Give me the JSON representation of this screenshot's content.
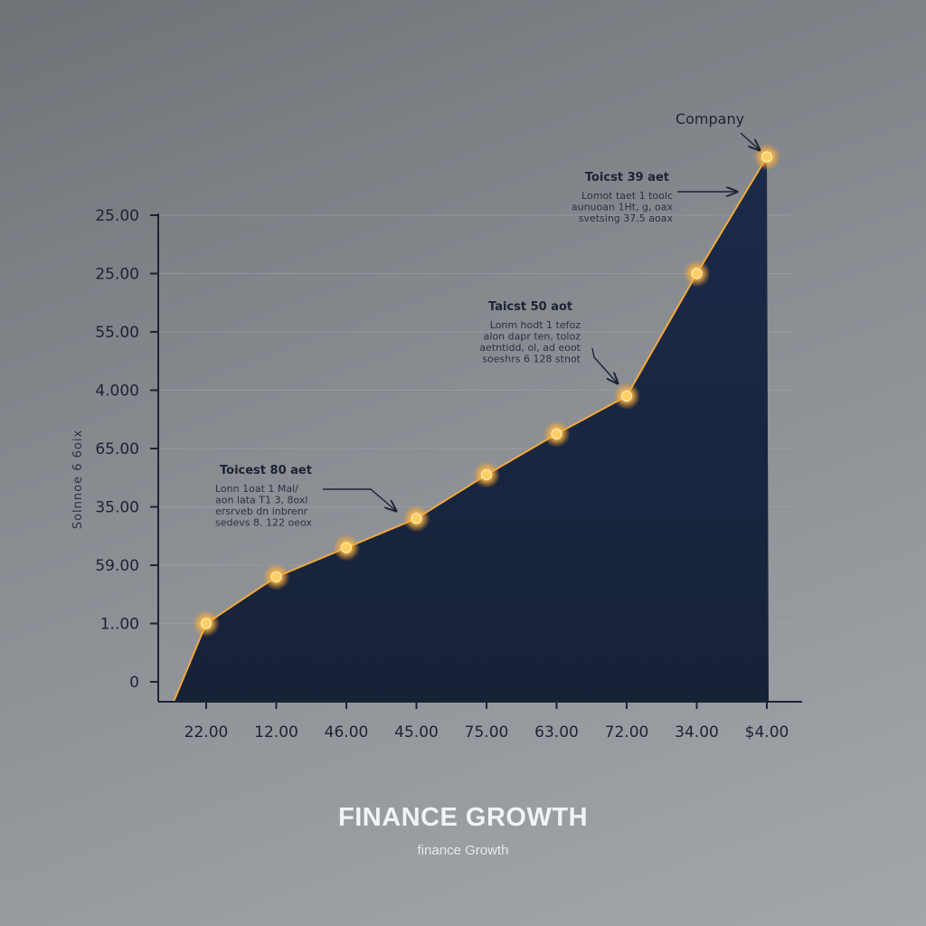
{
  "title": "FINANCE GROWTH",
  "subtitle": "finance Growth",
  "chart_data": {
    "type": "area",
    "title": "FINANCE GROWTH",
    "subtitle": "finance Growth",
    "ylabel": "Solnnoe 6 6oix",
    "xlabel": "",
    "y_ticks": [
      "25.00",
      "25.00",
      "55.00",
      "4.000",
      "65.00",
      "35.00",
      "59.00",
      "1..00",
      "0"
    ],
    "x_ticks": [
      "22.00",
      "12.00",
      "46.00",
      "45.00",
      "75.00",
      "63.00",
      "72.00",
      "34.00",
      "$4.00"
    ],
    "ylim": [
      0,
      8.3
    ],
    "grid": true,
    "series": [
      {
        "values": [
          1.0,
          1.8,
          2.3,
          2.8,
          3.55,
          4.25,
          4.9,
          7.0,
          9.0
        ],
        "color": "#f2a93b",
        "fill": "#1b2a4a"
      }
    ],
    "annotations": [
      {
        "title": "Toicest 80 aet",
        "lines": [
          "Lonn 1oat 1 Mal/",
          "aon lata  T1 3, 8oxl",
          "ersrveb  dn inbrenr",
          "sedevs 8. 122 oeox"
        ],
        "point_index": 3
      },
      {
        "title": "Taicst 50 aot",
        "lines": [
          "Lonm  hodt 1  tefoz",
          "alon dapr ten, toloz",
          "aetntidd, ol, ad eoot",
          "soeshrs 6 128 stnot"
        ],
        "point_index": 6
      },
      {
        "title": "Toicst 39 aet",
        "lines": [
          "Lomot  taet 1  toolc",
          "aunuoan  1Ht, g, oax",
          "svetsing 37.5 aoax"
        ],
        "point_index": 8
      },
      {
        "title": "Company",
        "lines": [],
        "point_index": 8
      }
    ]
  }
}
